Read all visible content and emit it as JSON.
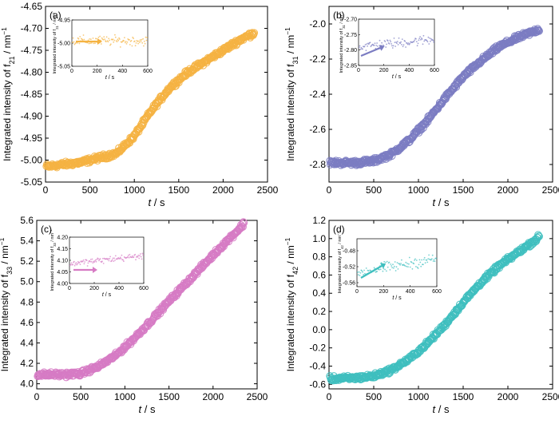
{
  "chart_data": [
    {
      "type": "scatter",
      "panel_label": "(a)",
      "color": "#f5b342",
      "xlabel": "t / s",
      "ylabel": "Integrated intensity of f21 / nm-1",
      "xlim": [
        0,
        2500
      ],
      "ylim": [
        -5.05,
        -4.65
      ],
      "xticks": [
        0,
        500,
        1000,
        1500,
        2000,
        2500
      ],
      "yticks": [
        -5.05,
        -5.0,
        -4.95,
        -4.9,
        -4.85,
        -4.8,
        -4.75,
        -4.7,
        -4.65
      ],
      "ytick_labels": [
        "-5.05",
        "-5.00",
        "-4.95",
        "-4.90",
        "-4.85",
        "-4.80",
        "-4.75",
        "-4.70",
        "-4.65"
      ],
      "x_start": 10,
      "x_end": 2350,
      "points": [
        [
          0,
          -5.015
        ],
        [
          400,
          -5.005
        ],
        [
          800,
          -4.985
        ],
        [
          1000,
          -4.945
        ],
        [
          1200,
          -4.885
        ],
        [
          1400,
          -4.835
        ],
        [
          1600,
          -4.8
        ],
        [
          1800,
          -4.775
        ],
        [
          2000,
          -4.75
        ],
        [
          2200,
          -4.725
        ],
        [
          2350,
          -4.71
        ]
      ],
      "noise": 0.012,
      "inset": {
        "xlim": [
          0,
          600
        ],
        "ylim": [
          -5.05,
          -4.95
        ],
        "xticks": [
          0,
          200,
          400,
          600
        ],
        "yticks": [
          -5.05,
          -5.0,
          -4.95
        ],
        "ytick_labels": [
          "-5.05",
          "-5.00",
          "-4.95"
        ],
        "xlabel": "t / s",
        "ylabel": "Integrated intensity of f21 / nm-1",
        "level": -4.995,
        "noise": 0.009,
        "arrow": "points right toward the flat level"
      }
    },
    {
      "type": "scatter",
      "panel_label": "(b)",
      "color": "#7b7cc2",
      "xlabel": "t / s",
      "ylabel": "Integrated intensity of f31 / nm-1",
      "xlim": [
        0,
        2500
      ],
      "ylim": [
        -2.9,
        -1.9
      ],
      "xticks": [
        0,
        500,
        1000,
        1500,
        2000,
        2500
      ],
      "yticks": [
        -2.8,
        -2.6,
        -2.4,
        -2.2,
        -2.0
      ],
      "ytick_labels": [
        "-2.8",
        "-2.6",
        "-2.4",
        "-2.2",
        "-2.0"
      ],
      "x_start": 10,
      "x_end": 2350,
      "points": [
        [
          0,
          -2.79
        ],
        [
          300,
          -2.79
        ],
        [
          500,
          -2.78
        ],
        [
          700,
          -2.74
        ],
        [
          900,
          -2.66
        ],
        [
          1100,
          -2.55
        ],
        [
          1300,
          -2.42
        ],
        [
          1500,
          -2.3
        ],
        [
          1700,
          -2.21
        ],
        [
          1900,
          -2.13
        ],
        [
          2100,
          -2.08
        ],
        [
          2300,
          -2.04
        ],
        [
          2350,
          -2.03
        ]
      ],
      "noise": 0.012,
      "inset": {
        "xlim": [
          0,
          600
        ],
        "ylim": [
          -2.85,
          -2.7
        ],
        "xticks": [
          0,
          200,
          400,
          600
        ],
        "yticks": [
          -2.85,
          -2.8,
          -2.75,
          -2.7
        ],
        "ytick_labels": [
          "-2.85",
          "-2.80",
          "-2.75",
          "-2.70"
        ],
        "xlabel": "t / s",
        "ylabel": "Integrated intensity of f31 / nm-1",
        "start": -2.79,
        "end": -2.765,
        "noise": 0.014,
        "arrow": "points up-right along the rising trend"
      }
    },
    {
      "type": "scatter",
      "panel_label": "(c)",
      "color": "#d67bc4",
      "xlabel": "t / s",
      "ylabel": "Integrated intensity of f33 / nm-1",
      "xlim": [
        0,
        2500
      ],
      "ylim": [
        3.95,
        5.6
      ],
      "xticks": [
        0,
        500,
        1000,
        1500,
        2000,
        2500
      ],
      "yticks": [
        4.0,
        4.2,
        4.4,
        4.6,
        4.8,
        5.0,
        5.2,
        5.4,
        5.6
      ],
      "ytick_labels": [
        "4.0",
        "4.2",
        "4.4",
        "4.6",
        "4.8",
        "5.0",
        "5.2",
        "5.4",
        "5.6"
      ],
      "x_start": 10,
      "x_end": 2350,
      "points": [
        [
          0,
          4.09
        ],
        [
          300,
          4.09
        ],
        [
          500,
          4.1
        ],
        [
          700,
          4.17
        ],
        [
          900,
          4.28
        ],
        [
          1100,
          4.44
        ],
        [
          1300,
          4.62
        ],
        [
          1500,
          4.81
        ],
        [
          1700,
          4.99
        ],
        [
          1900,
          5.17
        ],
        [
          2100,
          5.35
        ],
        [
          2300,
          5.52
        ],
        [
          2350,
          5.57
        ]
      ],
      "noise": 0.012,
      "inset": {
        "xlim": [
          0,
          600
        ],
        "ylim": [
          4.0,
          4.2
        ],
        "xticks": [
          0,
          200,
          400,
          600
        ],
        "yticks": [
          4.0,
          4.05,
          4.1,
          4.15,
          4.2
        ],
        "ytick_labels": [
          "4.00",
          "4.05",
          "4.10",
          "4.15",
          "4.20"
        ],
        "xlabel": "t / s",
        "ylabel": "Integrated intensity of f33 / nm-1",
        "start": 4.085,
        "end": 4.12,
        "noise": 0.012,
        "arrow": "points right toward the flat level"
      }
    },
    {
      "type": "scatter",
      "panel_label": "(d)",
      "color": "#3fbfbf",
      "xlabel": "t / s",
      "ylabel": "Integrated intensity of f42 / nm-1",
      "xlim": [
        0,
        2500
      ],
      "ylim": [
        -0.65,
        1.2
      ],
      "xticks": [
        0,
        500,
        1000,
        1500,
        2000,
        2500
      ],
      "yticks": [
        -0.6,
        -0.4,
        -0.2,
        0.0,
        0.2,
        0.4,
        0.6,
        0.8,
        1.0,
        1.2
      ],
      "ytick_labels": [
        "-0.6",
        "-0.4",
        "-0.2",
        "0.0",
        "0.2",
        "0.4",
        "0.6",
        "0.8",
        "1.0",
        "1.2"
      ],
      "x_start": 10,
      "x_end": 2350,
      "points": [
        [
          0,
          -0.54
        ],
        [
          300,
          -0.53
        ],
        [
          500,
          -0.51
        ],
        [
          700,
          -0.44
        ],
        [
          900,
          -0.32
        ],
        [
          1100,
          -0.15
        ],
        [
          1300,
          0.06
        ],
        [
          1500,
          0.3
        ],
        [
          1700,
          0.52
        ],
        [
          1900,
          0.7
        ],
        [
          2100,
          0.84
        ],
        [
          2300,
          0.98
        ],
        [
          2350,
          1.02
        ]
      ],
      "noise": 0.012,
      "inset": {
        "xlim": [
          0,
          600
        ],
        "ylim": [
          -0.57,
          -0.45
        ],
        "xticks": [
          0,
          200,
          400,
          600
        ],
        "yticks": [
          -0.56,
          -0.52,
          -0.48
        ],
        "ytick_labels": [
          "-0.56",
          "-0.52",
          "-0.48"
        ],
        "xlabel": "t / s",
        "ylabel": "Integrated intensity of f42 / nm-1",
        "start": -0.535,
        "end": -0.5,
        "noise": 0.012,
        "arrow": "points up-right along the rising trend"
      }
    }
  ]
}
